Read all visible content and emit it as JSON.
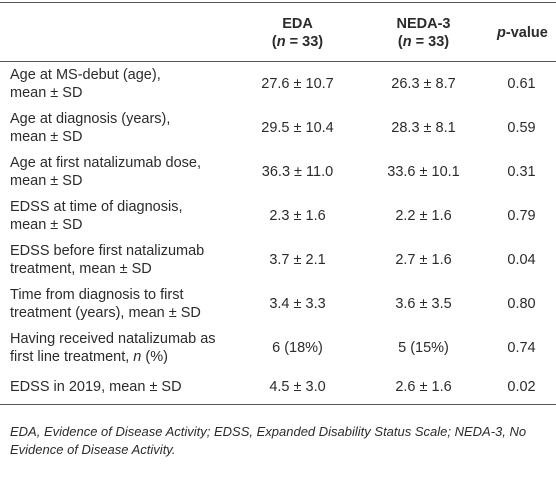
{
  "table": {
    "header": [
      [
        [
          {
            "t": ""
          }
        ]
      ],
      [
        [
          {
            "t": "EDA"
          }
        ],
        [
          {
            "t": "("
          },
          {
            "t": "n",
            "italic": true
          },
          {
            "t": " = 33)"
          }
        ]
      ],
      [
        [
          {
            "t": "NEDA-3"
          }
        ],
        [
          {
            "t": "("
          },
          {
            "t": "n",
            "italic": true
          },
          {
            "t": " = 33)"
          }
        ]
      ],
      [
        [
          {
            "t": "p",
            "italic": true
          },
          {
            "t": "-value"
          }
        ]
      ]
    ],
    "rows": [
      {
        "label": [
          [
            {
              "t": "Age at MS-debut (age),"
            }
          ],
          [
            {
              "t": "mean ± SD"
            }
          ]
        ],
        "cells": [
          "27.6 ± 10.7",
          "26.3 ± 8.7",
          "0.61"
        ]
      },
      {
        "label": [
          [
            {
              "t": "Age at diagnosis (years),"
            }
          ],
          [
            {
              "t": "mean ± SD"
            }
          ]
        ],
        "cells": [
          "29.5 ± 10.4",
          "28.3 ± 8.1",
          "0.59"
        ]
      },
      {
        "label": [
          [
            {
              "t": "Age at first natalizumab dose,"
            }
          ],
          [
            {
              "t": "mean ± SD"
            }
          ]
        ],
        "cells": [
          "36.3 ± 11.0",
          "33.6 ± 10.1",
          "0.31"
        ]
      },
      {
        "label": [
          [
            {
              "t": "EDSS at time of diagnosis,"
            }
          ],
          [
            {
              "t": "mean ± SD"
            }
          ]
        ],
        "cells": [
          "2.3 ± 1.6",
          "2.2 ± 1.6",
          "0.79"
        ]
      },
      {
        "label": [
          [
            {
              "t": "EDSS before first natalizumab"
            }
          ],
          [
            {
              "t": "treatment, mean ± SD"
            }
          ]
        ],
        "cells": [
          "3.7 ± 2.1",
          "2.7 ± 1.6",
          "0.04"
        ]
      },
      {
        "label": [
          [
            {
              "t": "Time from diagnosis to first"
            }
          ],
          [
            {
              "t": "treatment (years), mean ± SD"
            }
          ]
        ],
        "cells": [
          "3.4 ± 3.3",
          "3.6 ± 3.5",
          "0.80"
        ]
      },
      {
        "label": [
          [
            {
              "t": "Having received natalizumab as"
            }
          ],
          [
            {
              "t": "first line treatment, "
            },
            {
              "t": "n",
              "italic": true
            },
            {
              "t": " (%)"
            }
          ]
        ],
        "cells": [
          "6 (18%)",
          "5 (15%)",
          "0.74"
        ]
      },
      {
        "label": [
          [
            {
              "t": "EDSS in 2019, mean ± SD"
            }
          ]
        ],
        "cells": [
          "4.5 ± 3.0",
          "2.6 ± 1.6",
          "0.02"
        ]
      }
    ],
    "footnote": "EDA, Evidence of Disease Activity; EDSS, Expanded Disability Status Scale; NEDA-3, No Evidence of Disease Activity."
  }
}
